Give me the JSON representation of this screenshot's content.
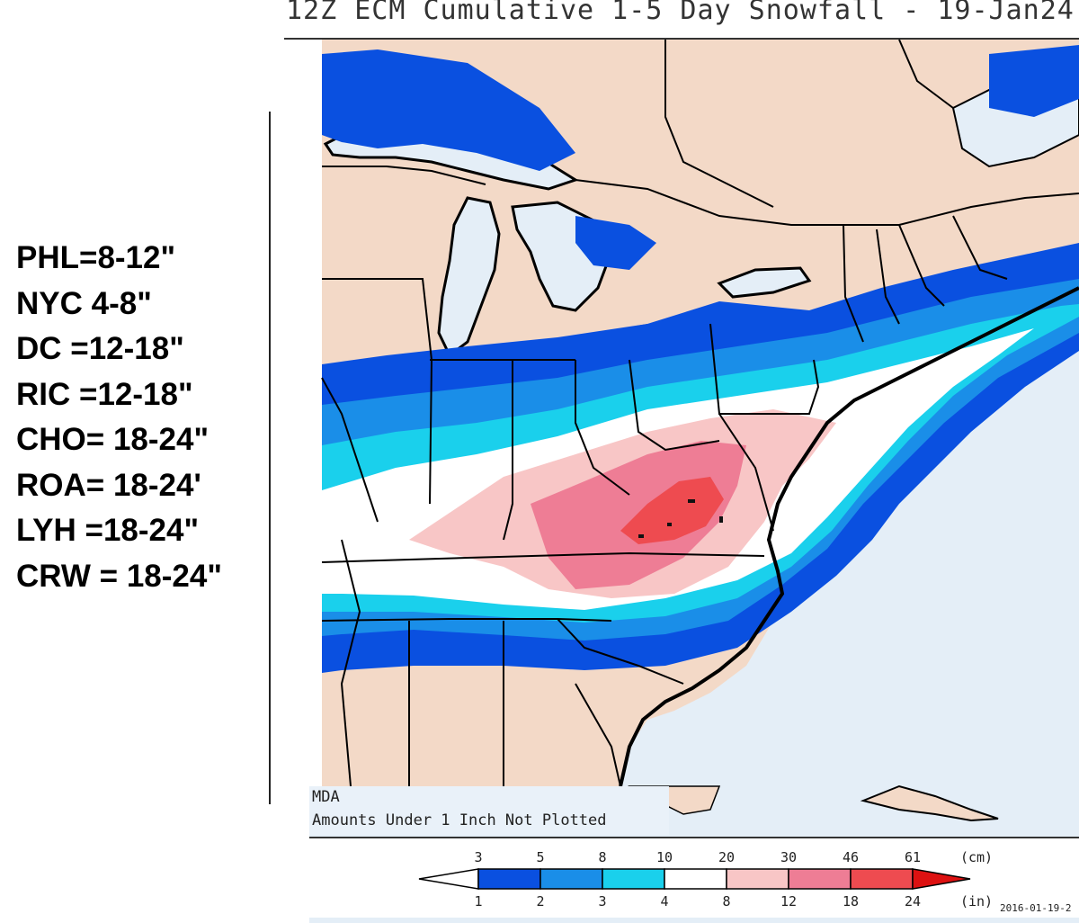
{
  "title": "12Z ECM Cumulative 1-5 Day Snowfall - 19-Jan24",
  "forecast": [
    "PHL=8-12\"",
    "NYC 4-8\"",
    "DC =12-18\"",
    "RIC =12-18\"",
    "CHO= 18-24\"",
    "ROA= 18-24'",
    "LYH =18-24\"",
    "CRW = 18-24\""
  ],
  "map_note": {
    "source": "MDA",
    "note": "Amounts Under 1 Inch Not Plotted"
  },
  "legend": {
    "cm_unit": "(cm)",
    "in_unit": "(in)",
    "cm_ticks": [
      "3",
      "5",
      "8",
      "10",
      "20",
      "30",
      "46",
      "61"
    ],
    "in_ticks": [
      "1",
      "2",
      "3",
      "4",
      "8",
      "12",
      "18",
      "24"
    ],
    "bin_colors": [
      "#ffffff",
      "#0a50e0",
      "#1a8ee8",
      "#1ad0ec",
      "#ffffff",
      "#f8c6c6",
      "#ee7d95",
      "#ee4b50",
      "#dd1111"
    ]
  },
  "date_stamp": "2016-01-19-2",
  "colors": {
    "land": "#f3d9c7",
    "water": "#e4eef7",
    "snow_1_2": "#0a50e0",
    "snow_2_3": "#1a8ee8",
    "snow_3_4": "#1ad0ec",
    "snow_4_8": "#ffffff",
    "snow_8_12": "#f8c6c6",
    "snow_12_18": "#ee7d95",
    "snow_18_24": "#ee4b50"
  }
}
